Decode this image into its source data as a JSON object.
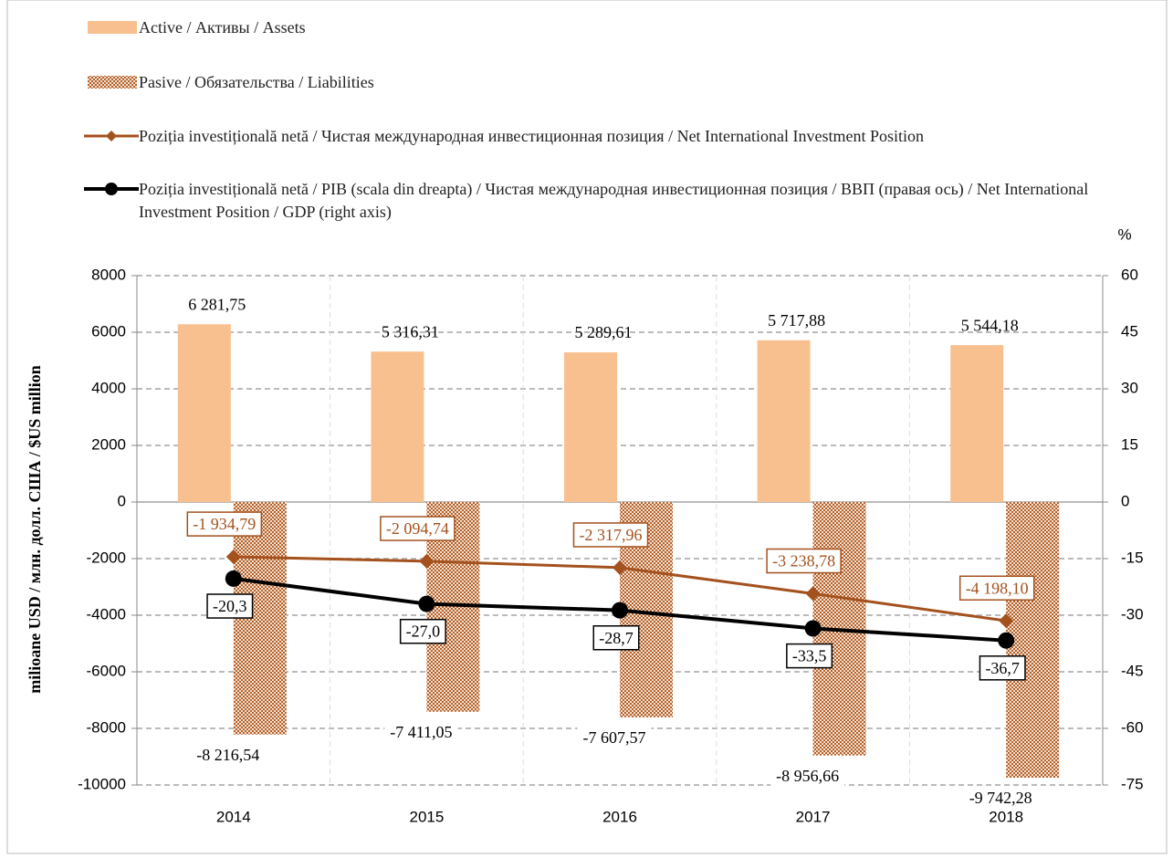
{
  "chart_data": {
    "type": "bar-line",
    "ylabel": "milioane USD / млн. долл. США / $US million",
    "y2label": "%",
    "categories": [
      "2014",
      "2015",
      "2016",
      "2017",
      "2018"
    ],
    "ylim": [
      -10000,
      8000
    ],
    "yticks": [
      8000,
      6000,
      4000,
      2000,
      0,
      -2000,
      -4000,
      -6000,
      -8000,
      -10000
    ],
    "y2lim": [
      -75,
      60
    ],
    "y2ticks": [
      60,
      45,
      30,
      15,
      0,
      -15,
      -30,
      -45,
      -60,
      -75
    ],
    "grid": true,
    "legend": "top",
    "series": [
      {
        "name": "Active / Активы / Assets",
        "type": "bar",
        "color": "#f9c08f",
        "values": [
          6281.75,
          5316.31,
          5289.61,
          5717.88,
          5544.18
        ],
        "value_labels": [
          "6 281,75",
          "5 316,31",
          "5 289,61",
          "5 717,88",
          "5 544,18"
        ]
      },
      {
        "name": "Pasive / Обязательства / Liabilities",
        "type": "bar",
        "color": "#b5602a",
        "pattern": "checker",
        "values": [
          -8216.54,
          -7411.05,
          -7607.57,
          -8956.66,
          -9742.28
        ],
        "value_labels": [
          "-8 216,54",
          "-7 411,05",
          "-7 607,57",
          "-8 956,66",
          "-9 742,28"
        ]
      },
      {
        "name": "Poziția investițională netă / Чистая международная инвестиционная позиция / Net International Investment Position",
        "type": "line",
        "color": "#a4511d",
        "marker": "diamond",
        "values": [
          -1934.79,
          -2094.74,
          -2317.96,
          -3238.78,
          -4198.1
        ],
        "value_labels": [
          "-1 934,79",
          "-2 094,74",
          "-2 317,96",
          "-3 238,78",
          "-4 198,10"
        ]
      },
      {
        "name": "Poziția investițională netă / PIB (scala din dreapta) / Чистая международная инвестиционная позиция / ВВП (правая ось) / Net International Investment Position / GDP (right axis)",
        "type": "line",
        "axis": "y2",
        "color": "#000000",
        "marker": "circle",
        "values": [
          -20.3,
          -27.0,
          -28.7,
          -33.5,
          -36.7
        ],
        "value_labels": [
          "-20,3",
          "-27,0",
          "-28,7",
          "-33,5",
          "-36,7"
        ]
      }
    ]
  }
}
